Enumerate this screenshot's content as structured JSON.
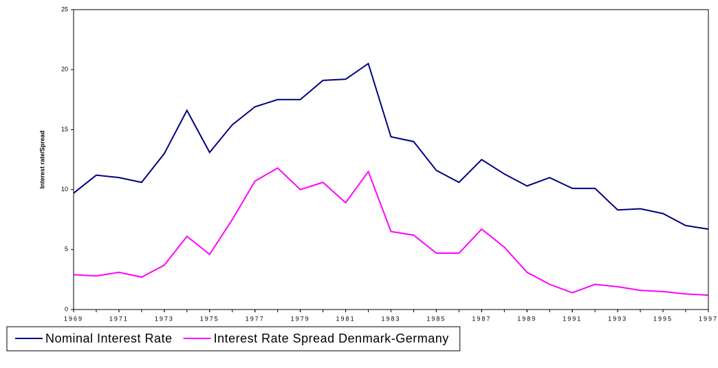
{
  "chart_data": {
    "type": "line",
    "y_label": "Interest rate/Spread",
    "x": [
      1969,
      1970,
      1971,
      1972,
      1973,
      1974,
      1975,
      1976,
      1977,
      1978,
      1979,
      1980,
      1981,
      1982,
      1983,
      1984,
      1985,
      1986,
      1987,
      1988,
      1989,
      1990,
      1991,
      1992,
      1993,
      1994,
      1995,
      1996,
      1997
    ],
    "xlim": [
      1969,
      1997
    ],
    "xticks": [
      1969,
      1971,
      1973,
      1975,
      1977,
      1979,
      1981,
      1983,
      1985,
      1987,
      1989,
      1991,
      1993,
      1995,
      1997
    ],
    "ylim": [
      0,
      25
    ],
    "yticks": [
      0,
      5,
      10,
      15,
      20,
      25
    ],
    "grid": false,
    "legend": "bottom",
    "series": [
      {
        "name": "Nominal Interest Rate",
        "color": "#000080",
        "values": [
          9.7,
          11.2,
          11.0,
          10.6,
          13.0,
          16.6,
          13.1,
          15.4,
          16.9,
          17.5,
          17.5,
          19.1,
          19.2,
          20.5,
          14.4,
          14.0,
          11.6,
          10.6,
          12.5,
          11.3,
          10.3,
          11.0,
          10.1,
          10.1,
          8.3,
          8.4,
          8.0,
          7.0,
          6.7
        ]
      },
      {
        "name": "Interest Rate Spread Denmark-Germany",
        "color": "#ff00ff",
        "values": [
          2.9,
          2.8,
          3.1,
          2.7,
          3.7,
          6.1,
          4.6,
          7.5,
          10.7,
          11.8,
          10.0,
          10.6,
          8.9,
          11.5,
          6.5,
          6.2,
          4.7,
          4.7,
          6.7,
          5.2,
          3.1,
          2.1,
          1.4,
          2.1,
          1.9,
          1.6,
          1.5,
          1.3,
          1.2
        ]
      }
    ]
  }
}
